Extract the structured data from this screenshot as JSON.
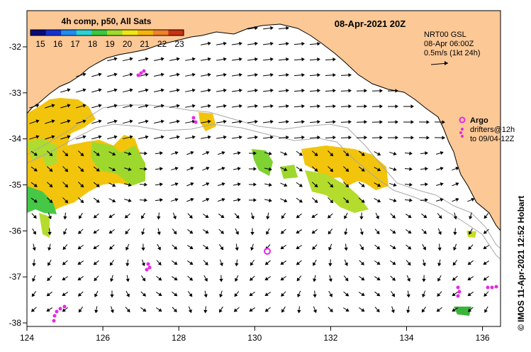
{
  "title": "08-Apr-2021 20Z",
  "colorbar": {
    "title": "4h comp, p50, All Sats",
    "ticks": [
      "15",
      "16",
      "17",
      "18",
      "19",
      "20",
      "21",
      "22",
      "23"
    ],
    "colors": [
      "#0a0a78",
      "#1432d2",
      "#1e8cf0",
      "#28d2d2",
      "#3cc83c",
      "#a0dc28",
      "#f0e614",
      "#f5b40a",
      "#f08228",
      "#c83214"
    ]
  },
  "current_legend": {
    "line1": "NRT00 GSL",
    "line2": "08-Apr 06:00Z",
    "line3": "0.5m/s (1kt 24h)"
  },
  "argo_legend": {
    "label": "Argo",
    "line1": "drifters@12h",
    "line2": "to 09/04-12Z"
  },
  "credit": "© IMOS 11-Apr-2021 12:52 Hobart",
  "axes": {
    "lon_ticks": [
      "124",
      "126",
      "128",
      "130",
      "132",
      "134",
      "136"
    ],
    "lat_ticks": [
      "-32",
      "-33",
      "-34",
      "-35",
      "-36",
      "-37",
      "-38"
    ]
  },
  "colors": {
    "land": "#fcc896",
    "argo": "#e628e6",
    "bathy": "#a8a8a8"
  }
}
